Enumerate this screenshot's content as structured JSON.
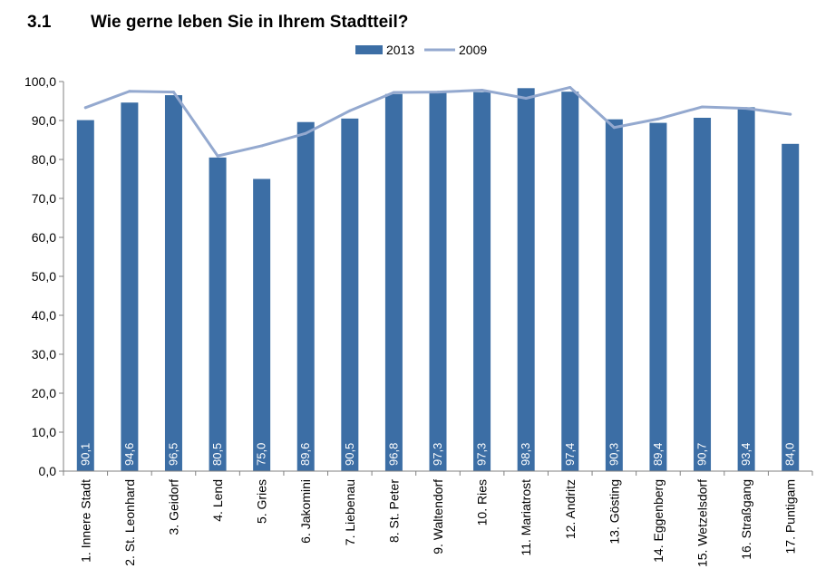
{
  "heading": {
    "number": "3.1",
    "title": "Wie gerne leben Sie in Ihrem Stadtteil?"
  },
  "chart_data": {
    "type": "bar",
    "categories": [
      "1. Innere Stadt",
      "2. St. Leonhard",
      "3. Geidorf",
      "4. Lend",
      "5. Gries",
      "6. Jakomini",
      "7. Liebenau",
      "8. St. Peter",
      "9. Waltendorf",
      "10. Ries",
      "11. Mariatrost",
      "12. Andritz",
      "13. Gösting",
      "14. Eggenberg",
      "15. Wetzelsdorf",
      "16. Straßgang",
      "17. Puntigam"
    ],
    "series": [
      {
        "name": "2013",
        "kind": "bar",
        "color": "#3C6EA5",
        "values": [
          90.1,
          94.6,
          96.5,
          80.5,
          75.0,
          89.6,
          90.5,
          96.8,
          97.3,
          97.3,
          98.3,
          97.4,
          90.3,
          89.4,
          90.7,
          93.4,
          84.0
        ],
        "labels": [
          "90,1",
          "94,6",
          "96,5",
          "80,5",
          "75,0",
          "89,6",
          "90,5",
          "96,8",
          "97,3",
          "97,3",
          "98,3",
          "97,4",
          "90,3",
          "89,4",
          "90,7",
          "93,4",
          "84,0"
        ]
      },
      {
        "name": "2009",
        "kind": "line",
        "color": "#94A9CF",
        "values": [
          93.3,
          97.5,
          97.3,
          80.9,
          83.5,
          86.7,
          92.5,
          97.2,
          97.3,
          97.8,
          95.7,
          98.5,
          88.2,
          90.4,
          93.5,
          93.1,
          91.6
        ]
      }
    ],
    "ylim": [
      0,
      100
    ],
    "yticks": [
      "0,0",
      "10,0",
      "20,0",
      "30,0",
      "40,0",
      "50,0",
      "60,0",
      "70,0",
      "80,0",
      "90,0",
      "100,0"
    ],
    "legend": "top-center",
    "grid": false
  }
}
